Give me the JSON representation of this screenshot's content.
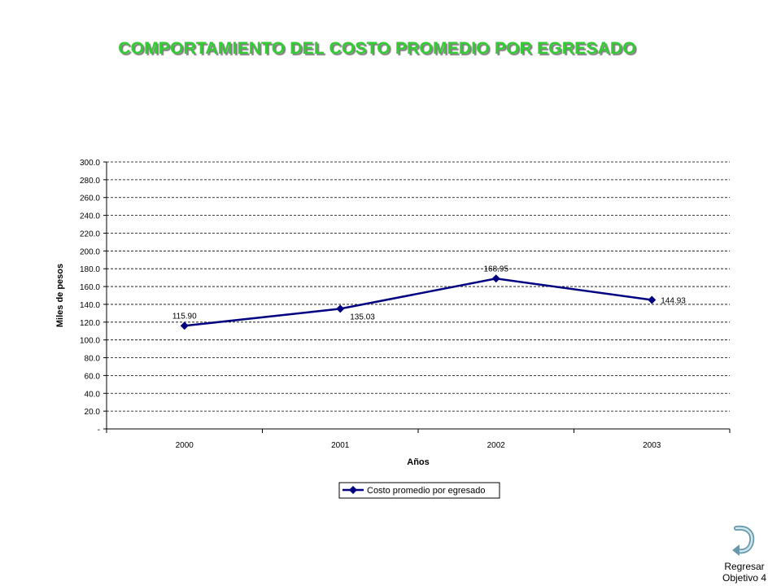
{
  "title": "COMPORTAMIENTO DEL COSTO PROMEDIO POR EGRESADO",
  "nav": {
    "line1": "Regresar",
    "line2": "Objetivo 4",
    "icon": "return-arrow-icon"
  },
  "colors": {
    "title": "#33cc33",
    "series": "#000080",
    "grid": "#000000"
  },
  "chart_data": {
    "type": "line",
    "title": "",
    "xlabel": "Años",
    "ylabel": "Miles de pesos",
    "categories": [
      "2000",
      "2001",
      "2002",
      "2003"
    ],
    "series": [
      {
        "name": "Costo promedio por egresado",
        "values": [
          115.9,
          135.03,
          168.95,
          144.93
        ],
        "labels": [
          "115.90",
          "135.03",
          "168.95",
          "144.93"
        ]
      }
    ],
    "ylim": [
      0,
      300
    ],
    "yticks": [
      0,
      20,
      40,
      60,
      80,
      100,
      120,
      140,
      160,
      180,
      200,
      220,
      240,
      260,
      280,
      300
    ],
    "ytick_labels": [
      "-",
      "20.0",
      "40.0",
      "60.0",
      "80.0",
      "100.0",
      "120.0",
      "140.0",
      "160.0",
      "180.0",
      "200.0",
      "220.0",
      "240.0",
      "260.0",
      "280.0",
      "300.0"
    ],
    "grid": true,
    "grid_style": "dashed",
    "legend_position": "bottom",
    "marker": "diamond"
  }
}
